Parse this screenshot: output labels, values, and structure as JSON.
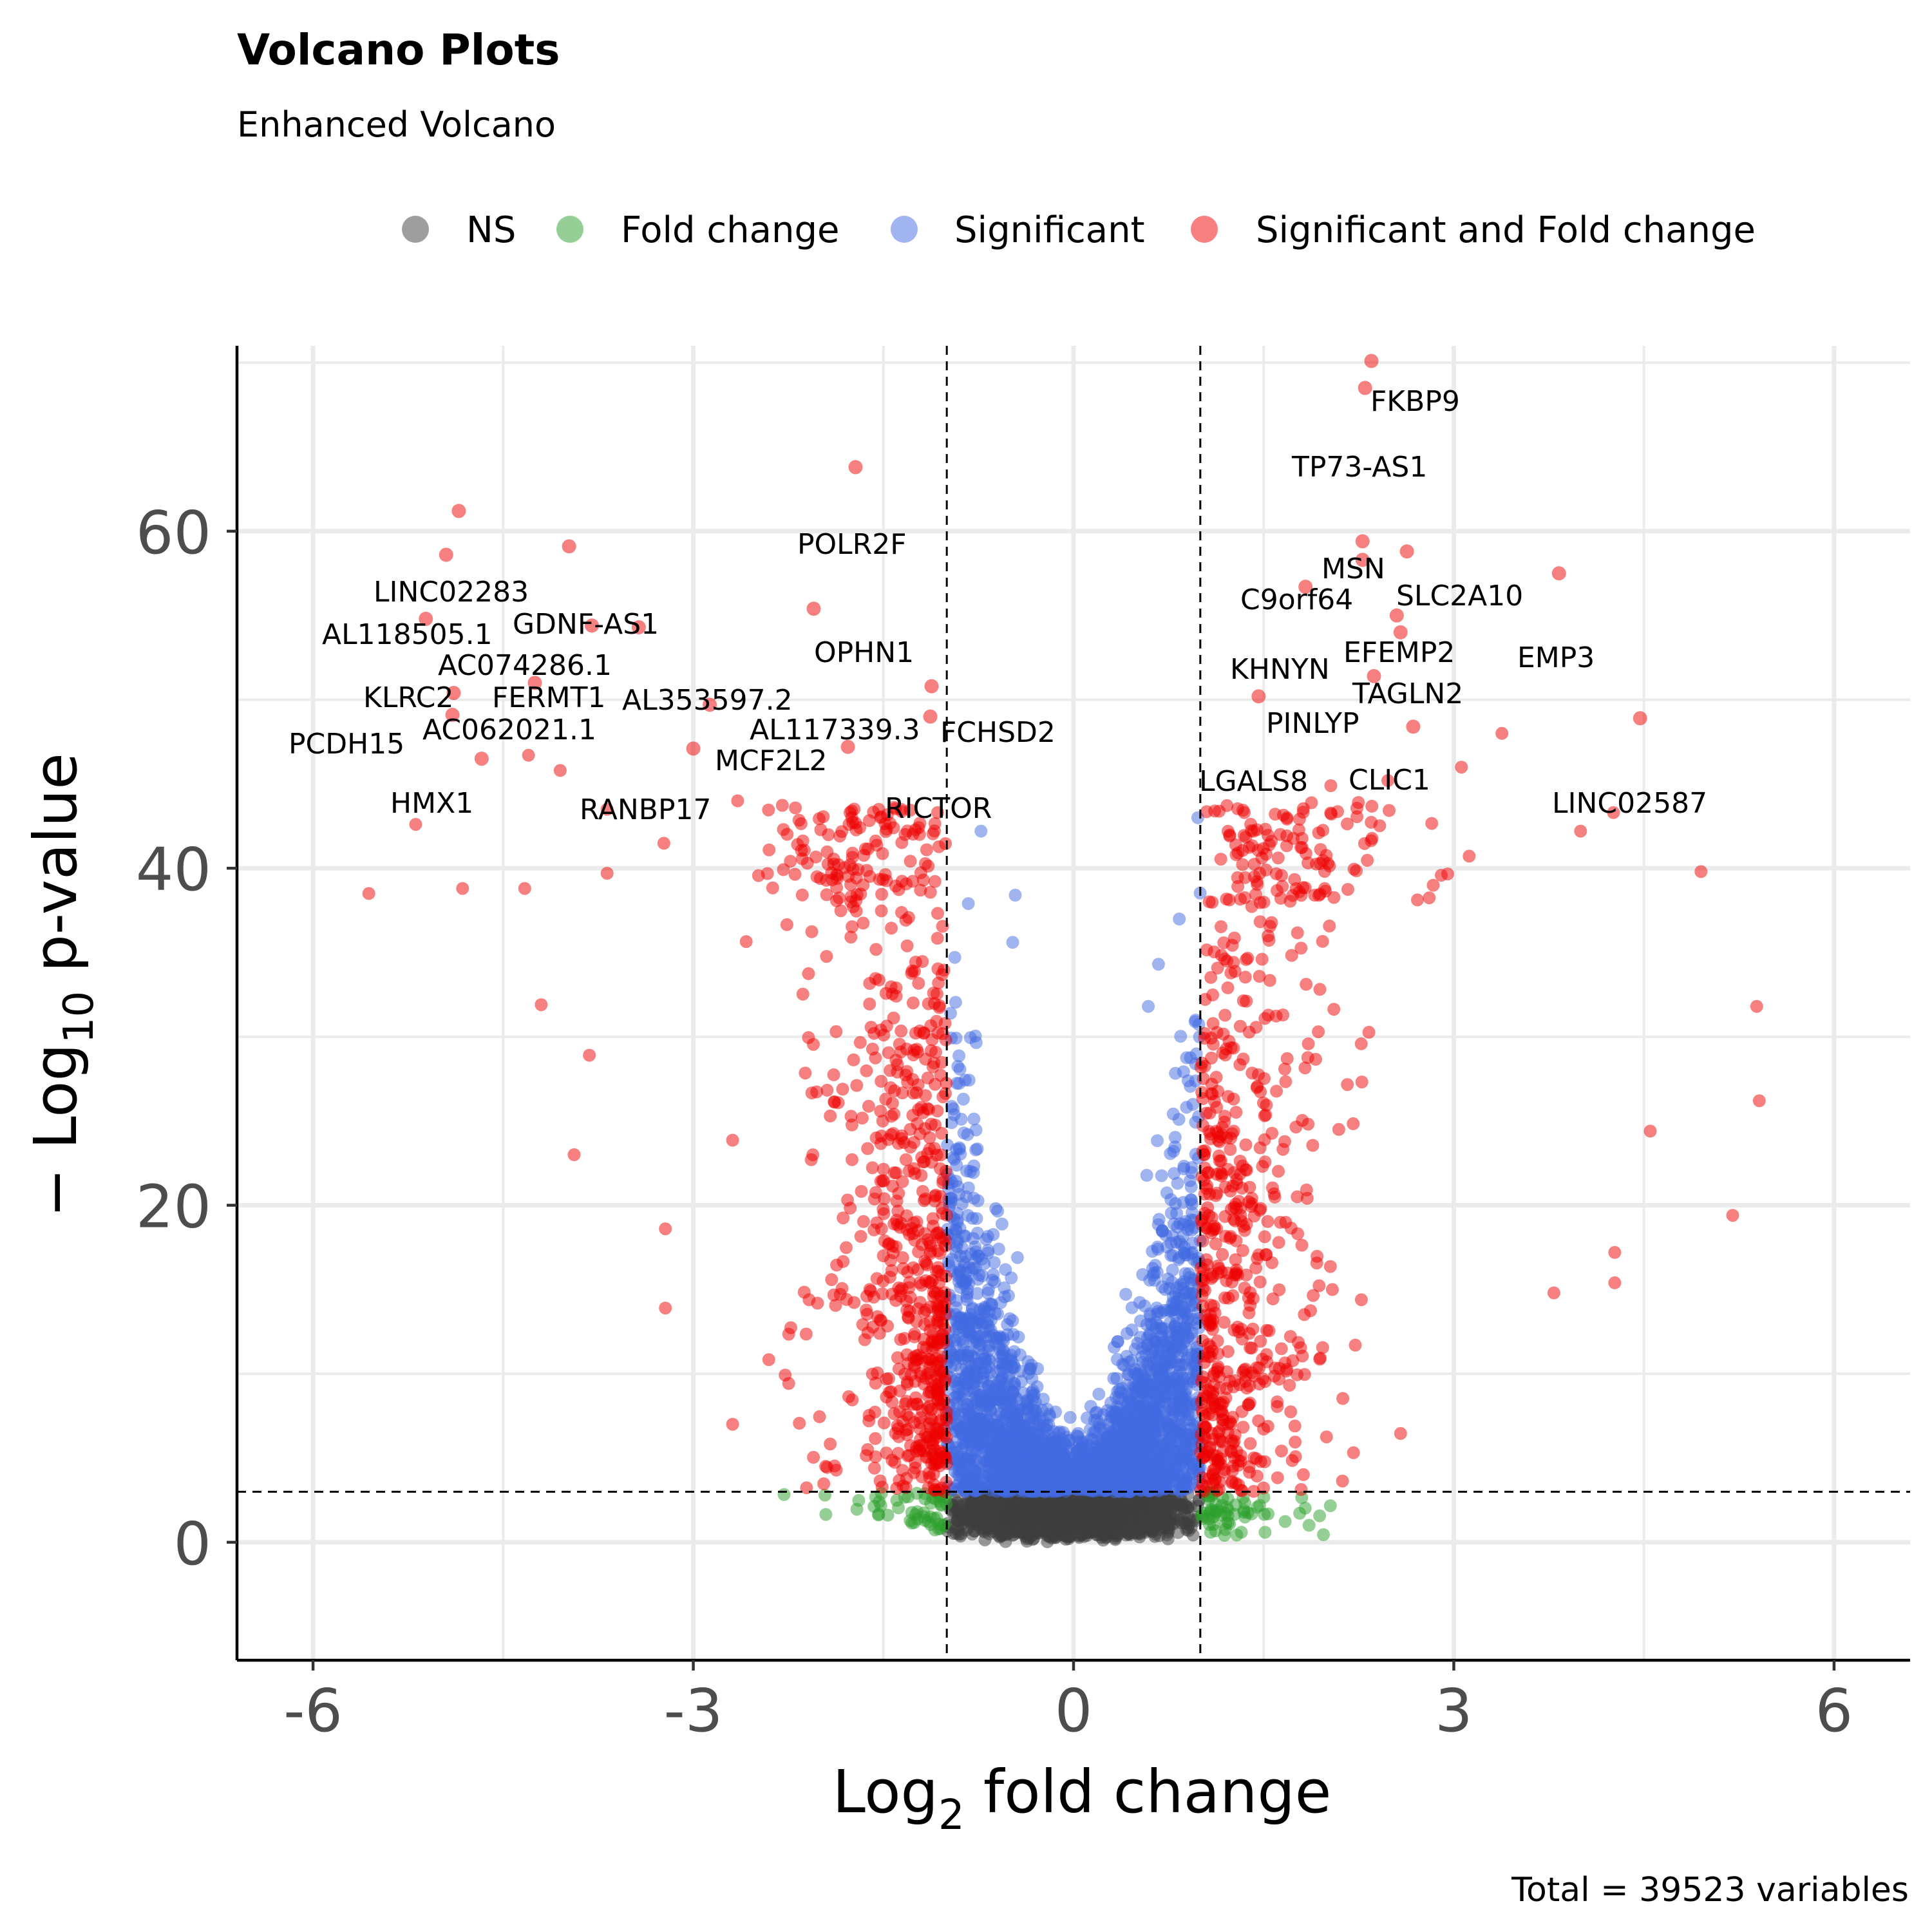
{
  "chart_data": {
    "type": "scatter",
    "title": "Volcano Plots",
    "subtitle": "Enhanced Volcano",
    "xlabel": {
      "prefix": "Log",
      "sub": "2",
      "suffix": " fold change"
    },
    "ylabel": {
      "prefix": "− Log",
      "sub": "10",
      "suffix": " p-value"
    },
    "xlim": [
      -6.6,
      6.6
    ],
    "ylim": [
      -7,
      71
    ],
    "xticks": [
      {
        "v": -6,
        "label": "-6"
      },
      {
        "v": -3,
        "label": "-3"
      },
      {
        "v": 0,
        "label": "0"
      },
      {
        "v": 3,
        "label": "3"
      },
      {
        "v": 6,
        "label": "6"
      }
    ],
    "yticks": [
      {
        "v": 0,
        "label": "0"
      },
      {
        "v": 20,
        "label": "20"
      },
      {
        "v": 40,
        "label": "40"
      },
      {
        "v": 60,
        "label": "60"
      }
    ],
    "grid": true,
    "legend_position": "top",
    "cutoffs": {
      "fold_change": [
        -1,
        1
      ],
      "neg_log10_p": 3
    },
    "caption": "Total = 39523 variables",
    "total_variables": 39523,
    "colors": {
      "NS": "#3d3d3d",
      "Fold change": "#2ca02c",
      "Significant": "#4169e1",
      "Significant and Fold change": "#ee0000"
    },
    "series": [
      {
        "name": "NS",
        "color": "#3d3d3d"
      },
      {
        "name": "Fold change",
        "color": "#2ca02c"
      },
      {
        "name": "Significant",
        "color": "#4169e1"
      },
      {
        "name": "Significant and Fold change",
        "color": "#ee0000"
      }
    ],
    "labeled_points": [
      {
        "label": "FKBP9",
        "x": 2.35,
        "y": 70.1,
        "series": "Significant and Fold change"
      },
      {
        "label": "TP73-AS1",
        "x": 2.3,
        "y": 68.5,
        "series": "Significant and Fold change"
      },
      {
        "label": "POLR2F",
        "x": -1.72,
        "y": 63.8,
        "series": "Significant and Fold change"
      },
      {
        "label": "LINC02283",
        "x": -4.85,
        "y": 61.2,
        "series": "Significant and Fold change"
      },
      {
        "label": "GDNF-AS1",
        "x": -3.98,
        "y": 59.1,
        "series": "Significant and Fold change"
      },
      {
        "label": "AL118505.1",
        "x": -4.95,
        "y": 58.6,
        "series": "Significant and Fold change"
      },
      {
        "label": "MSN",
        "x": 2.28,
        "y": 59.4,
        "series": "Significant and Fold change"
      },
      {
        "label": "C9orf64",
        "x": 2.28,
        "y": 58.3,
        "series": "Significant and Fold change"
      },
      {
        "label": "SLC2A10",
        "x": 2.63,
        "y": 58.8,
        "series": "Significant and Fold change"
      },
      {
        "label": "EMP3",
        "x": 3.83,
        "y": 57.5,
        "series": "Significant and Fold change"
      },
      {
        "label": "OPHN1",
        "x": -2.05,
        "y": 55.4,
        "series": "Significant and Fold change"
      },
      {
        "label": "AC074286.1",
        "x": -3.8,
        "y": 54.4,
        "series": "Significant and Fold change"
      },
      {
        "label": "KHNYN",
        "x": 1.83,
        "y": 56.7,
        "series": "Significant and Fold change"
      },
      {
        "label": "EFEMP2",
        "x": 2.55,
        "y": 55.0,
        "series": "Significant and Fold change"
      },
      {
        "label": "KLRC2",
        "x": -5.11,
        "y": 54.8,
        "series": "Significant and Fold change"
      },
      {
        "label": "AL353597.2",
        "x": -3.43,
        "y": 54.3,
        "series": "Significant and Fold change"
      },
      {
        "label": "TAGLN2",
        "x": 2.58,
        "y": 54.0,
        "series": "Significant and Fold change"
      },
      {
        "label": "FERMT1",
        "x": -4.25,
        "y": 51.0,
        "series": "Significant and Fold change"
      },
      {
        "label": "AC062021.1",
        "x": -4.89,
        "y": 50.4,
        "series": "Significant and Fold change"
      },
      {
        "label": "PCDH15",
        "x": -4.9,
        "y": 49.1,
        "series": "Significant and Fold change"
      },
      {
        "label": "AL117339.3",
        "x": -1.12,
        "y": 50.8,
        "series": "Significant and Fold change"
      },
      {
        "label": "FCHSD2",
        "x": -1.13,
        "y": 49.0,
        "series": "Significant and Fold change"
      },
      {
        "label": "PINLYP",
        "x": 2.37,
        "y": 51.4,
        "series": "Significant and Fold change"
      },
      {
        "label": "MCF2L2",
        "x": -2.87,
        "y": 49.7,
        "series": "Significant and Fold change"
      },
      {
        "label": "LGALS8",
        "x": 1.46,
        "y": 50.2,
        "series": "Significant and Fold change"
      },
      {
        "label": "CLIC1",
        "x": 2.68,
        "y": 48.4,
        "series": "Significant and Fold change"
      },
      {
        "label": "HMX1",
        "x": -4.67,
        "y": 46.5,
        "series": "Significant and Fold change"
      },
      {
        "label": "RANBP17",
        "x": -3.0,
        "y": 47.1,
        "series": "Significant and Fold change"
      },
      {
        "label": "RICTOR",
        "x": -1.78,
        "y": 47.2,
        "series": "Significant and Fold change"
      },
      {
        "label": "LINC02587",
        "x": 4.47,
        "y": 48.9,
        "series": "Significant and Fold change"
      }
    ],
    "outlier_points": [
      {
        "x": -5.56,
        "y": 38.5
      },
      {
        "x": -5.19,
        "y": 42.6
      },
      {
        "x": -4.82,
        "y": 38.8
      },
      {
        "x": -4.3,
        "y": 46.7
      },
      {
        "x": -4.33,
        "y": 38.8
      },
      {
        "x": -4.05,
        "y": 45.8
      },
      {
        "x": -3.68,
        "y": 43.5
      },
      {
        "x": -3.68,
        "y": 39.7
      },
      {
        "x": -4.2,
        "y": 31.9
      },
      {
        "x": -3.82,
        "y": 28.9
      },
      {
        "x": -3.94,
        "y": 23.0
      },
      {
        "x": -3.22,
        "y": 18.6
      },
      {
        "x": -3.22,
        "y": 13.9
      },
      {
        "x": -2.65,
        "y": 44.0
      },
      {
        "x": -2.1,
        "y": 40.3
      },
      {
        "x": -1.66,
        "y": 39.0
      },
      {
        "x": -1.42,
        "y": 42.4
      },
      {
        "x": 1.63,
        "y": 42.0
      },
      {
        "x": 2.03,
        "y": 44.9
      },
      {
        "x": 2.48,
        "y": 45.2
      },
      {
        "x": 3.06,
        "y": 46.0
      },
      {
        "x": 3.38,
        "y": 48.0
      },
      {
        "x": 4.26,
        "y": 43.3
      },
      {
        "x": 4.95,
        "y": 39.8
      },
      {
        "x": 5.39,
        "y": 31.8
      },
      {
        "x": 5.41,
        "y": 26.2
      },
      {
        "x": 5.2,
        "y": 19.4
      },
      {
        "x": 4.55,
        "y": 24.4
      },
      {
        "x": 4.27,
        "y": 17.2
      },
      {
        "x": 4.27,
        "y": 15.4
      },
      {
        "x": 3.79,
        "y": 14.8
      },
      {
        "x": 4.0,
        "y": 42.2
      },
      {
        "x": 0.67,
        "y": 34.3
      },
      {
        "x": -0.73,
        "y": 42.2
      },
      {
        "x": -0.46,
        "y": 38.4
      },
      {
        "x": 0.98,
        "y": 43.0
      },
      {
        "x": -0.83,
        "y": 37.9
      },
      {
        "x": -0.48,
        "y": 35.6
      },
      {
        "x": 0.59,
        "y": 31.8
      }
    ]
  }
}
